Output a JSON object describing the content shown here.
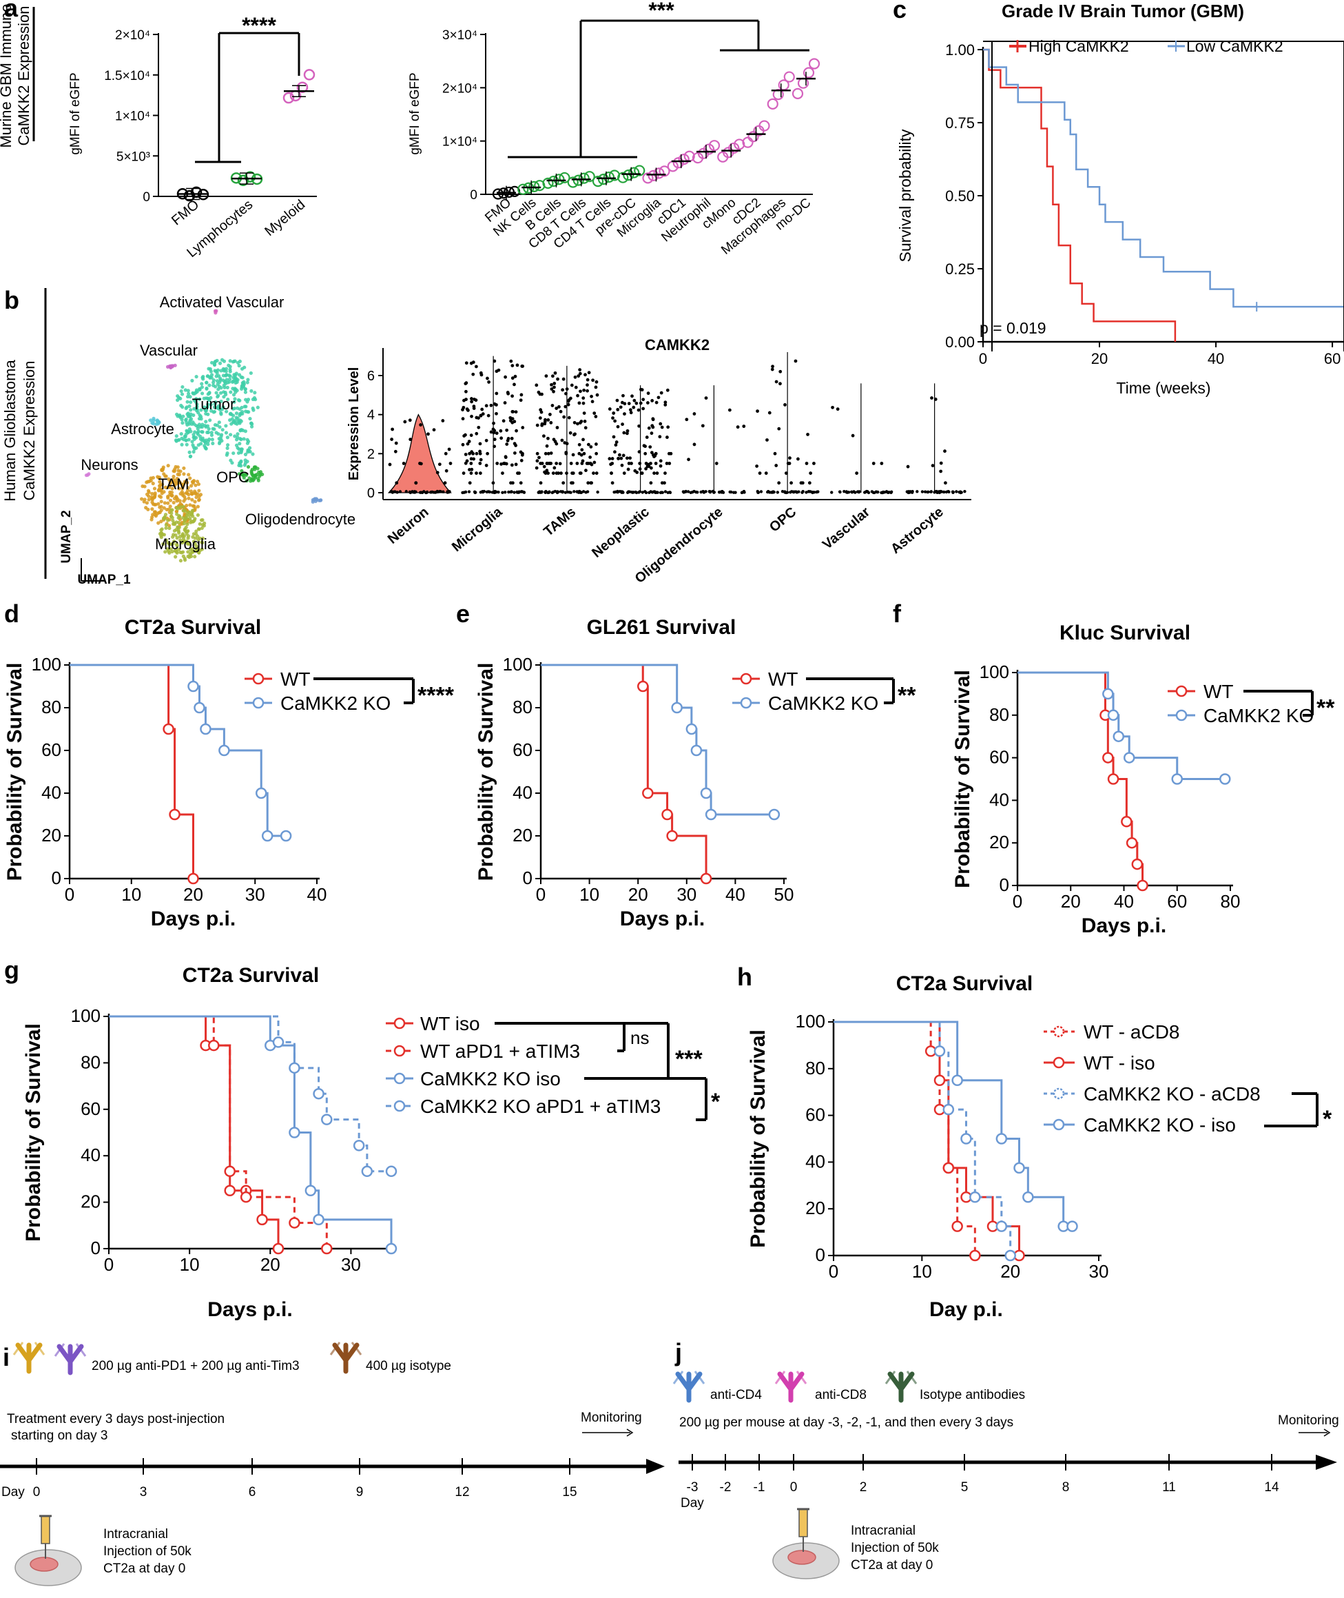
{
  "colors": {
    "red": "#e3302b",
    "blue": "#6c99d3",
    "green": "#27a43d",
    "pink": "#d462bd",
    "black": "#000000",
    "umap_tumor": "#3fcfa8",
    "umap_tam": "#d89a1f",
    "umap_microglia": "#a6b83a",
    "umap_opc": "#2db33a"
  },
  "panels": {
    "a": {
      "letter": "a",
      "side_label": [
        "Murine  GBM Immune",
        "CaMKK2 Expression"
      ],
      "left": {
        "ylabel": "gMFI of eGFP",
        "yticks": [
          "0",
          "5×10³",
          "1×10⁴",
          "1.5×10⁴",
          "2×10⁴"
        ],
        "ytick_values": [
          0,
          5000,
          10000,
          15000,
          20000
        ],
        "categories": [
          "FMO",
          "Lymphocytes",
          "Myeloid"
        ],
        "sig": "****"
      },
      "right": {
        "ylabel": "gMFI of eGFP",
        "yticks": [
          "0",
          "1×10⁴",
          "2×10⁴",
          "3×10⁴"
        ],
        "ytick_values": [
          0,
          10000,
          20000,
          30000
        ],
        "categories": [
          "FMO",
          "NK Cells",
          "B Cells",
          "CD8 T Cells",
          "CD4 T Cells",
          "pre-cDC",
          "Microglia",
          "cDC1",
          "Neutrophil",
          "cMono",
          "cDC2",
          "Macrophages",
          "mo-DC"
        ],
        "sig": "***"
      }
    },
    "b": {
      "letter": "b",
      "side_label": [
        "Human Glioblastoma",
        "CaMKK2 Expression"
      ],
      "umap_labels": [
        "Activated Vascular",
        "Vascular",
        "Tumor",
        "Astrocyte",
        "Neurons",
        "OPC",
        "TAM",
        "Oligodendrocyte",
        "Microglia"
      ],
      "umap_axes": [
        "UMAP_1",
        "UMAP_2"
      ],
      "violin_title": "CAMKK2",
      "violin_ylabel": "Expression Level",
      "violin_yticks": [
        "0",
        "2",
        "4",
        "6"
      ],
      "violin_categories": [
        "Neuron",
        "Microglia",
        "TAMs",
        "Neoplastic",
        "Oligodendrocyte",
        "OPC",
        "Vascular",
        "Astrocyte"
      ]
    },
    "c": {
      "letter": "c",
      "title": "Grade IV Brain Tumor (GBM)",
      "ylabel": "Survival probability",
      "xlabel": "Time (weeks)",
      "yticks": [
        "0.00",
        "0.25",
        "0.50",
        "0.75",
        "1.00"
      ],
      "xticks": [
        "0",
        "20",
        "40",
        "60"
      ],
      "legend": [
        "High CaMKK2",
        "Low CaMKK2"
      ],
      "pvalue": "p = 0.019"
    },
    "d": {
      "letter": "d",
      "title": "CT2a  Survival",
      "ylabel": "Probability of Survival",
      "xlabel": "Days p.i.",
      "xticks": [
        "0",
        "10",
        "20",
        "30",
        "40"
      ],
      "yticks": [
        "0",
        "20",
        "40",
        "60",
        "80",
        "100"
      ],
      "legend": [
        "WT",
        "CaMKK2 KO"
      ],
      "sig": "****"
    },
    "e": {
      "letter": "e",
      "title": "GL261 Survival",
      "ylabel": "Probability of Survival",
      "xlabel": "Days p.i.",
      "xticks": [
        "0",
        "10",
        "20",
        "30",
        "40",
        "50"
      ],
      "yticks": [
        "0",
        "20",
        "40",
        "60",
        "80",
        "100"
      ],
      "legend": [
        "WT",
        "CaMKK2 KO"
      ],
      "sig": "**"
    },
    "f": {
      "letter": "f",
      "title": "Kluc Survival",
      "ylabel": "Probability of Survival",
      "xlabel": "Days p.i.",
      "xticks": [
        "0",
        "20",
        "40",
        "60",
        "80"
      ],
      "yticks": [
        "0",
        "20",
        "40",
        "60",
        "80",
        "100"
      ],
      "legend": [
        "WT",
        "CaMKK2 KO"
      ],
      "sig": "**"
    },
    "g": {
      "letter": "g",
      "title": "CT2a  Survival",
      "ylabel": "Probability of Survival",
      "xlabel": "Days p.i.",
      "xticks": [
        "0",
        "10",
        "20",
        "30"
      ],
      "yticks": [
        "0",
        "20",
        "40",
        "60",
        "80",
        "100"
      ],
      "legend": [
        "WT iso",
        "WT aPD1 + aTIM3",
        "CaMKK2 KO iso",
        "CaMKK2 KO aPD1 + aTIM3"
      ],
      "sig_ns": "ns",
      "sig_main": "***",
      "sig_star": "*"
    },
    "h": {
      "letter": "h",
      "title": "CT2a  Survival",
      "ylabel": "Probability of Survival",
      "xlabel": "Day p.i.",
      "xticks": [
        "0",
        "10",
        "20",
        "30"
      ],
      "yticks": [
        "0",
        "20",
        "40",
        "60",
        "80",
        "100"
      ],
      "legend": [
        "WT - aCD8",
        "WT - iso",
        "CaMKK2 KO - aCD8",
        "CaMKK2 KO - iso"
      ],
      "sig": "*"
    },
    "i": {
      "letter": "i",
      "antibody_text": "200 µg anti-PD1 + 200 µg anti-Tim3",
      "isotype_text": "400 µg isotype",
      "treatment_text": [
        "Treatment every 3 days post-injection",
        "starting on day 3"
      ],
      "monitoring": "Monitoring",
      "day_label": "Day",
      "days": [
        "0",
        "3",
        "6",
        "9",
        "12",
        "15"
      ],
      "injection_text": [
        "Intracranial",
        "Injection of 50k",
        "CT2a at day 0"
      ]
    },
    "j": {
      "letter": "j",
      "legend": [
        "anti-CD4",
        "anti-CD8",
        "Isotype antibodies"
      ],
      "dose_text": "200 µg per mouse at day -3, -2, -1, and then every 3 days",
      "monitoring": "Monitoring",
      "day_label": "Day",
      "days": [
        "-3",
        "-2",
        "-1",
        "0",
        "2",
        "5",
        "8",
        "11",
        "14"
      ],
      "injection_text": [
        "Intracranial",
        "Injection of 50k",
        "CT2a at day 0"
      ]
    }
  },
  "chart_data": [
    {
      "panel": "a-left",
      "type": "scatter",
      "title": "",
      "xlabel": "",
      "ylabel": "gMFI of eGFP",
      "ylim": [
        0,
        20000
      ],
      "categories": [
        "FMO",
        "Lymphocytes",
        "Myeloid"
      ],
      "series": [
        {
          "name": "FMO",
          "color": "black",
          "mean": 300,
          "points": [
            150,
            250,
            350,
            400
          ]
        },
        {
          "name": "Lymphocytes",
          "color": "green",
          "mean": 2200,
          "points": [
            2100,
            2150,
            2250,
            2300
          ]
        },
        {
          "name": "Myeloid",
          "color": "pink",
          "mean": 13000,
          "points": [
            12000,
            12600,
            13300,
            15200
          ]
        }
      ]
    },
    {
      "panel": "a-right",
      "type": "scatter",
      "title": "",
      "xlabel": "",
      "ylabel": "gMFI of eGFP",
      "ylim": [
        0,
        30000
      ],
      "categories": [
        "FMO",
        "NK Cells",
        "B Cells",
        "CD8 T Cells",
        "CD4 T Cells",
        "pre-cDC",
        "Microglia",
        "cDC1",
        "Neutrophil",
        "cMono",
        "cDC2",
        "Macrophages",
        "mo-DC"
      ],
      "means": [
        300,
        1300,
        2600,
        2800,
        3000,
        3800,
        3700,
        6200,
        8000,
        8200,
        11300,
        19500,
        21700
      ],
      "colors": [
        "black",
        "green",
        "green",
        "green",
        "green",
        "green",
        "pink",
        "pink",
        "pink",
        "pink",
        "pink",
        "pink",
        "pink"
      ]
    },
    {
      "panel": "c",
      "type": "line",
      "title": "Grade IV Brain Tumor (GBM)",
      "xlabel": "Time (weeks)",
      "ylabel": "Survival probability",
      "xlim": [
        0,
        62
      ],
      "ylim": [
        0,
        1
      ],
      "series": [
        {
          "name": "High CaMKK2",
          "color": "red",
          "steps": [
            [
              0,
              1.0
            ],
            [
              1,
              0.93
            ],
            [
              3,
              0.87
            ],
            [
              10,
              0.73
            ],
            [
              11,
              0.6
            ],
            [
              12,
              0.47
            ],
            [
              13,
              0.33
            ],
            [
              15,
              0.2
            ],
            [
              17,
              0.13
            ],
            [
              19,
              0.07
            ],
            [
              33,
              0.0
            ]
          ]
        },
        {
          "name": "Low CaMKK2",
          "color": "blue",
          "steps": [
            [
              0,
              1.0
            ],
            [
              1,
              0.94
            ],
            [
              4,
              0.88
            ],
            [
              6,
              0.82
            ],
            [
              14,
              0.76
            ],
            [
              15,
              0.71
            ],
            [
              16,
              0.59
            ],
            [
              18,
              0.53
            ],
            [
              20,
              0.47
            ],
            [
              21,
              0.41
            ],
            [
              24,
              0.35
            ],
            [
              27,
              0.29
            ],
            [
              31,
              0.24
            ],
            [
              39,
              0.18
            ],
            [
              43,
              0.12
            ],
            [
              62,
              0.12
            ]
          ]
        }
      ]
    },
    {
      "panel": "d",
      "type": "line",
      "title": "CT2a  Survival",
      "xlabel": "Days p.i.",
      "ylabel": "Probability of Survival",
      "xlim": [
        0,
        40
      ],
      "ylim": [
        0,
        100
      ],
      "series": [
        {
          "name": "WT",
          "color": "red",
          "steps": [
            [
              0,
              100
            ],
            [
              16,
              70
            ],
            [
              17,
              30
            ],
            [
              20,
              0
            ]
          ]
        },
        {
          "name": "CaMKK2 KO",
          "color": "blue",
          "steps": [
            [
              0,
              100
            ],
            [
              20,
              90
            ],
            [
              21,
              80
            ],
            [
              22,
              70
            ],
            [
              25,
              60
            ],
            [
              31,
              40
            ],
            [
              32,
              20
            ],
            [
              35,
              20
            ]
          ]
        }
      ]
    },
    {
      "panel": "e",
      "type": "line",
      "title": "GL261 Survival",
      "xlabel": "Days p.i.",
      "ylabel": "Probability of Survival",
      "xlim": [
        0,
        50
      ],
      "ylim": [
        0,
        100
      ],
      "series": [
        {
          "name": "WT",
          "color": "red",
          "steps": [
            [
              0,
              100
            ],
            [
              21,
              90
            ],
            [
              22,
              40
            ],
            [
              26,
              30
            ],
            [
              27,
              20
            ],
            [
              34,
              0
            ]
          ]
        },
        {
          "name": "CaMKK2 KO",
          "color": "blue",
          "steps": [
            [
              0,
              100
            ],
            [
              28,
              80
            ],
            [
              31,
              70
            ],
            [
              32,
              60
            ],
            [
              34,
              40
            ],
            [
              35,
              30
            ],
            [
              48,
              30
            ]
          ]
        }
      ]
    },
    {
      "panel": "f",
      "type": "line",
      "title": "Kluc Survival",
      "xlabel": "Days p.i.",
      "ylabel": "Probability of Survival",
      "xlim": [
        0,
        80
      ],
      "ylim": [
        0,
        100
      ],
      "series": [
        {
          "name": "WT",
          "color": "red",
          "steps": [
            [
              0,
              100
            ],
            [
              33,
              80
            ],
            [
              34,
              60
            ],
            [
              36,
              50
            ],
            [
              41,
              30
            ],
            [
              43,
              20
            ],
            [
              45,
              10
            ],
            [
              47,
              0
            ]
          ]
        },
        {
          "name": "CaMKK2 KO",
          "color": "blue",
          "steps": [
            [
              0,
              100
            ],
            [
              34,
              90
            ],
            [
              36,
              80
            ],
            [
              38,
              70
            ],
            [
              42,
              60
            ],
            [
              60,
              50
            ],
            [
              78,
              50
            ]
          ]
        }
      ]
    },
    {
      "panel": "g",
      "type": "line",
      "title": "CT2a  Survival",
      "xlabel": "Days p.i.",
      "ylabel": "Probability of Survival",
      "xlim": [
        0,
        35
      ],
      "ylim": [
        0,
        100
      ],
      "series": [
        {
          "name": "WT iso",
          "color": "red",
          "dash": false,
          "steps": [
            [
              0,
              100
            ],
            [
              12,
              87.5
            ],
            [
              15,
              25
            ],
            [
              17,
              25
            ],
            [
              19,
              12.5
            ],
            [
              21,
              0
            ]
          ]
        },
        {
          "name": "WT aPD1 + aTIM3",
          "color": "red",
          "dash": true,
          "steps": [
            [
              0,
              100
            ],
            [
              13,
              87.5
            ],
            [
              15,
              33.3
            ],
            [
              17,
              22.2
            ],
            [
              23,
              11.1
            ],
            [
              27,
              0
            ]
          ]
        },
        {
          "name": "CaMKK2 KO iso",
          "color": "blue",
          "dash": false,
          "steps": [
            [
              0,
              100
            ],
            [
              20,
              87.5
            ],
            [
              23,
              50
            ],
            [
              25,
              25
            ],
            [
              26,
              12.5
            ],
            [
              35,
              0
            ]
          ]
        },
        {
          "name": "CaMKK2 KO aPD1 + aTIM3",
          "color": "blue",
          "dash": true,
          "steps": [
            [
              0,
              100
            ],
            [
              21,
              88.9
            ],
            [
              23,
              77.8
            ],
            [
              26,
              66.7
            ],
            [
              27,
              55.6
            ],
            [
              31,
              44.4
            ],
            [
              32,
              33.3
            ],
            [
              35,
              33.3
            ]
          ]
        }
      ]
    },
    {
      "panel": "h",
      "type": "line",
      "title": "CT2a  Survival",
      "xlabel": "Day p.i.",
      "ylabel": "Probability of Survival",
      "xlim": [
        0,
        30
      ],
      "ylim": [
        0,
        100
      ],
      "series": [
        {
          "name": "WT - aCD8",
          "color": "red",
          "dash": true,
          "steps": [
            [
              0,
              100
            ],
            [
              11,
              87.5
            ],
            [
              12,
              62.5
            ],
            [
              13,
              37.5
            ],
            [
              14,
              12.5
            ],
            [
              16,
              0
            ]
          ]
        },
        {
          "name": "WT - iso",
          "color": "red",
          "dash": false,
          "steps": [
            [
              0,
              100
            ],
            [
              12,
              75
            ],
            [
              13,
              37.5
            ],
            [
              15,
              25
            ],
            [
              18,
              12.5
            ],
            [
              21,
              0
            ]
          ]
        },
        {
          "name": "CaMKK2 KO - aCD8",
          "color": "blue",
          "dash": true,
          "steps": [
            [
              0,
              100
            ],
            [
              12,
              87.5
            ],
            [
              13,
              62.5
            ],
            [
              15,
              50
            ],
            [
              16,
              25
            ],
            [
              19,
              12.5
            ],
            [
              20,
              0
            ]
          ]
        },
        {
          "name": "CaMKK2 KO - iso",
          "color": "blue",
          "dash": false,
          "steps": [
            [
              0,
              100
            ],
            [
              14,
              75
            ],
            [
              19,
              50
            ],
            [
              21,
              37.5
            ],
            [
              22,
              25
            ],
            [
              26,
              12.5
            ],
            [
              27,
              12.5
            ]
          ]
        }
      ]
    }
  ]
}
